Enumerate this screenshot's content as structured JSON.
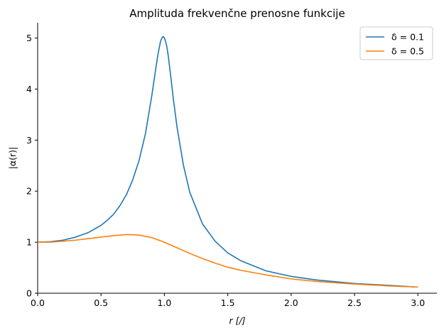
{
  "chart_data": {
    "type": "line",
    "title": "Amplituda frekvenčne prenosne funkcije",
    "xlabel": "r [/]",
    "ylabel": "|α(r)|",
    "xlim": [
      0,
      3.15
    ],
    "ylim": [
      0,
      5.3
    ],
    "xticks": [
      0.0,
      0.5,
      1.0,
      1.5,
      2.0,
      2.5,
      3.0
    ],
    "xtick_labels": [
      "0.0",
      "0.5",
      "1.0",
      "1.5",
      "2.0",
      "2.5",
      "3.0"
    ],
    "yticks": [
      0,
      1,
      2,
      3,
      4,
      5
    ],
    "ytick_labels": [
      "0",
      "1",
      "2",
      "3",
      "4",
      "5"
    ],
    "grid": false,
    "legend_position": "top-right",
    "series": [
      {
        "name": "δ = 0.1",
        "color": "#1f77b4",
        "x": [
          0.0,
          0.1,
          0.2,
          0.3,
          0.4,
          0.5,
          0.55,
          0.6,
          0.65,
          0.7,
          0.75,
          0.8,
          0.85,
          0.9,
          0.93,
          0.95,
          0.97,
          0.98,
          0.99,
          1.0,
          1.01,
          1.02,
          1.03,
          1.05,
          1.07,
          1.1,
          1.15,
          1.2,
          1.3,
          1.4,
          1.5,
          1.6,
          1.8,
          2.0,
          2.2,
          2.5,
          2.8,
          3.0
        ],
        "y": [
          1.0,
          1.01,
          1.04,
          1.1,
          1.19,
          1.33,
          1.43,
          1.55,
          1.72,
          1.93,
          2.22,
          2.6,
          3.12,
          3.86,
          4.37,
          4.69,
          4.94,
          5.0,
          5.03,
          5.0,
          4.93,
          4.82,
          4.66,
          4.25,
          3.82,
          3.25,
          2.51,
          1.98,
          1.36,
          1.02,
          0.79,
          0.64,
          0.44,
          0.33,
          0.26,
          0.19,
          0.15,
          0.12
        ]
      },
      {
        "name": "δ = 0.5",
        "color": "#ff7f0e",
        "x": [
          0.0,
          0.1,
          0.2,
          0.3,
          0.4,
          0.5,
          0.6,
          0.707,
          0.8,
          0.9,
          1.0,
          1.1,
          1.2,
          1.3,
          1.4,
          1.5,
          1.6,
          1.8,
          2.0,
          2.2,
          2.5,
          2.8,
          3.0
        ],
        "y": [
          1.0,
          1.0,
          1.02,
          1.04,
          1.07,
          1.1,
          1.13,
          1.15,
          1.14,
          1.09,
          1.0,
          0.89,
          0.78,
          0.68,
          0.59,
          0.51,
          0.45,
          0.36,
          0.28,
          0.23,
          0.18,
          0.14,
          0.12
        ]
      }
    ]
  }
}
